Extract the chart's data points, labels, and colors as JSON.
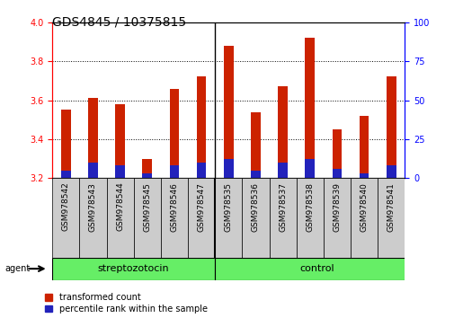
{
  "title": "GDS4845 / 10375815",
  "samples": [
    "GSM978542",
    "GSM978543",
    "GSM978544",
    "GSM978545",
    "GSM978546",
    "GSM978547",
    "GSM978535",
    "GSM978536",
    "GSM978537",
    "GSM978538",
    "GSM978539",
    "GSM978540",
    "GSM978541"
  ],
  "red_values": [
    3.55,
    3.61,
    3.58,
    3.3,
    3.66,
    3.72,
    3.88,
    3.54,
    3.67,
    3.92,
    3.45,
    3.52,
    3.72
  ],
  "blue_percentiles": [
    5,
    10,
    8,
    3,
    8,
    10,
    12,
    5,
    10,
    12,
    6,
    3,
    8
  ],
  "baseline": 3.2,
  "ylim_left": [
    3.2,
    4.0
  ],
  "ylim_right": [
    0,
    100
  ],
  "yticks_left": [
    3.2,
    3.4,
    3.6,
    3.8,
    4.0
  ],
  "yticks_right": [
    0,
    25,
    50,
    75,
    100
  ],
  "group_divider": 6,
  "red_color": "#CC2200",
  "blue_color": "#2222BB",
  "label_bg_color": "#CCCCCC",
  "green_color": "#66EE66",
  "agent_label": "agent",
  "legend_red": "transformed count",
  "legend_blue": "percentile rank within the sample",
  "title_fontsize": 10,
  "tick_fontsize": 7,
  "bar_width": 0.35
}
